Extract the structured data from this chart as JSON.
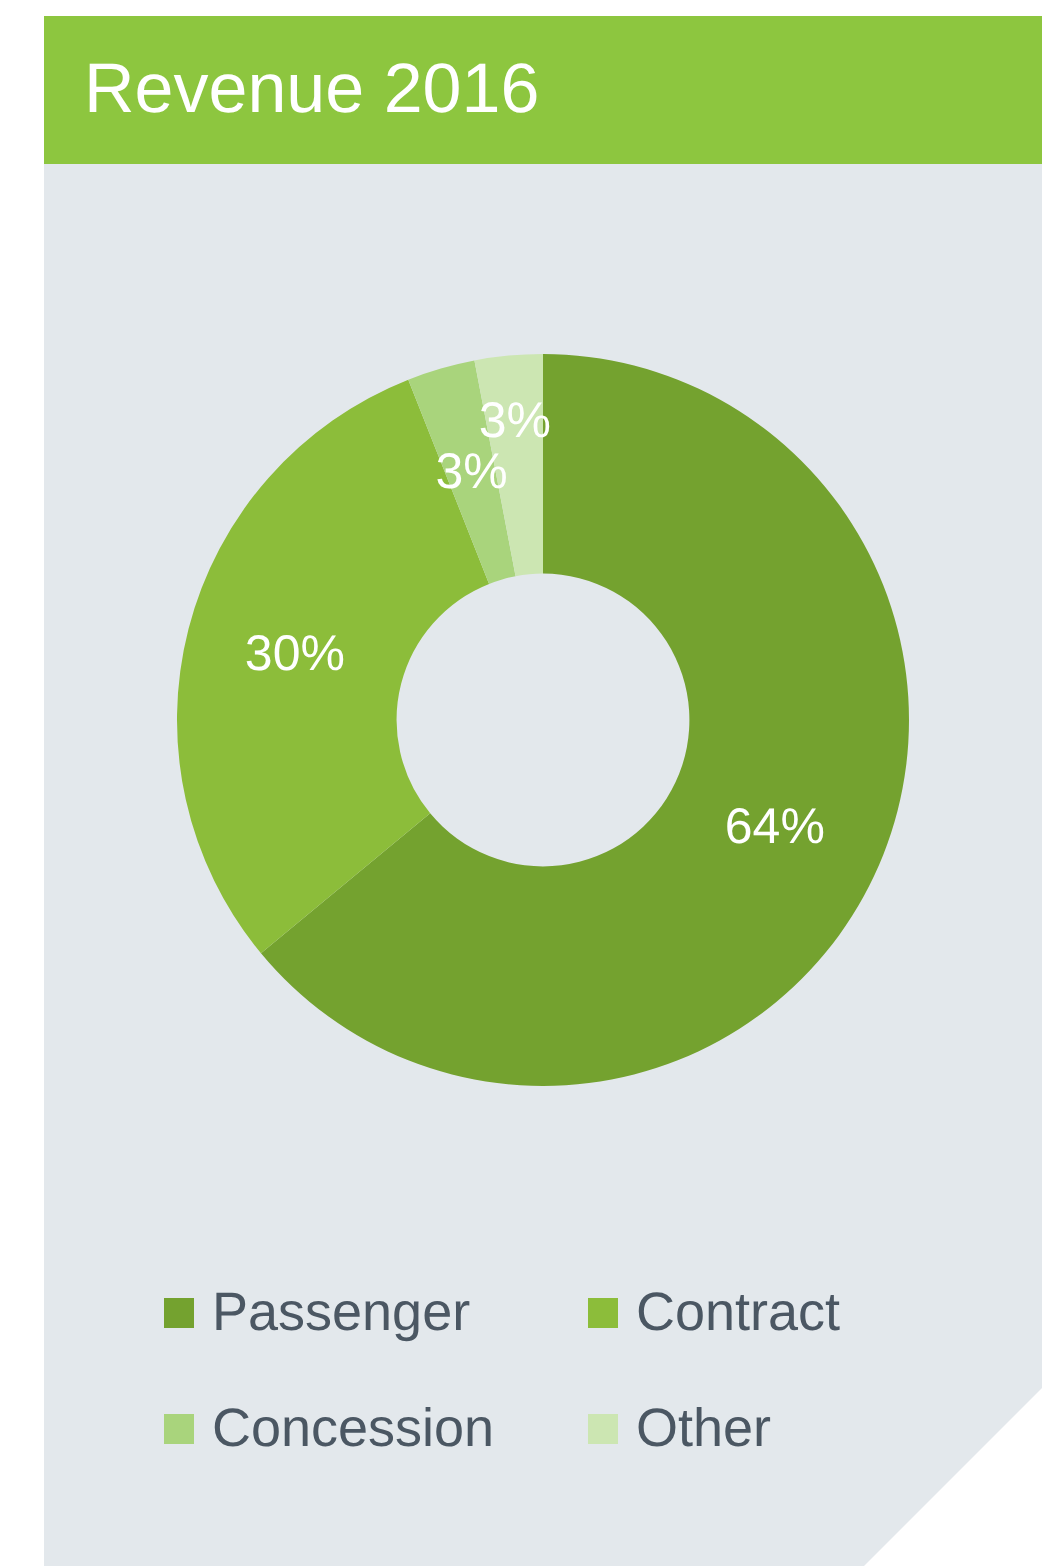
{
  "chart_data": {
    "type": "donut",
    "title": "Revenue 2016",
    "categories": [
      "Passenger",
      "Contract",
      "Concession",
      "Other"
    ],
    "values": [
      64,
      30,
      3,
      3
    ],
    "colors": [
      "#74a22f",
      "#8cbd3a",
      "#a9d47c",
      "#cce6b2"
    ],
    "value_labels": [
      "64%",
      "30%",
      "3%",
      "3%"
    ],
    "legend": "bottom"
  }
}
